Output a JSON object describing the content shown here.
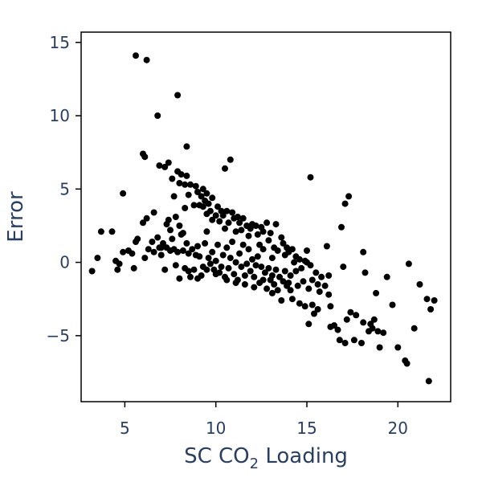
{
  "chart_data": {
    "type": "scatter",
    "title": "",
    "xlabel": "SC CO",
    "xlabel_subscript": "2",
    "xlabel_suffix": " Loading",
    "ylabel": "Error",
    "xlim": [
      2.6,
      22.9
    ],
    "ylim": [
      -9.5,
      15.7
    ],
    "x_ticks": [
      5,
      10,
      15,
      20
    ],
    "y_ticks": [
      -5,
      0,
      5,
      10,
      15
    ],
    "y_tick_labels": [
      "−5",
      "0",
      "5",
      "10",
      "15"
    ],
    "grid": false,
    "marker_color": "#000000",
    "points": [
      [
        5.6,
        14.1
      ],
      [
        6.2,
        13.8
      ],
      [
        7.9,
        11.4
      ],
      [
        6.8,
        10.0
      ],
      [
        8.4,
        7.9
      ],
      [
        6.0,
        7.4
      ],
      [
        6.1,
        7.2
      ],
      [
        10.8,
        7.0
      ],
      [
        10.5,
        6.4
      ],
      [
        7.4,
        6.8
      ],
      [
        6.9,
        6.6
      ],
      [
        7.2,
        6.5
      ],
      [
        7.9,
        6.2
      ],
      [
        8.1,
        6.0
      ],
      [
        8.4,
        5.9
      ],
      [
        7.6,
        5.7
      ],
      [
        8.0,
        5.4
      ],
      [
        8.3,
        5.3
      ],
      [
        8.6,
        5.3
      ],
      [
        8.9,
        5.2
      ],
      [
        9.3,
        5.0
      ],
      [
        9.0,
        4.8
      ],
      [
        9.5,
        4.7
      ],
      [
        8.5,
        4.6
      ],
      [
        9.2,
        4.5
      ],
      [
        7.7,
        4.5
      ],
      [
        9.8,
        4.4
      ],
      [
        9.4,
        4.2
      ],
      [
        9.6,
        4.0
      ],
      [
        9.1,
        3.9
      ],
      [
        10.1,
        3.8
      ],
      [
        9.7,
        3.5
      ],
      [
        10.3,
        3.5
      ],
      [
        10.6,
        3.5
      ],
      [
        10.9,
        3.4
      ],
      [
        9.5,
        3.3
      ],
      [
        10.0,
        3.2
      ],
      [
        10.4,
        3.2
      ],
      [
        11.2,
        3.1
      ],
      [
        11.0,
        3.0
      ],
      [
        11.5,
        3.0
      ],
      [
        9.8,
        2.9
      ],
      [
        10.2,
        2.8
      ],
      [
        10.7,
        2.7
      ],
      [
        11.3,
        2.7
      ],
      [
        12.0,
        2.6
      ],
      [
        12.8,
        2.7
      ],
      [
        13.3,
        2.6
      ],
      [
        11.7,
        2.5
      ],
      [
        12.2,
        2.5
      ],
      [
        12.5,
        2.4
      ],
      [
        11.9,
        2.3
      ],
      [
        11.4,
        2.2
      ],
      [
        11.1,
        2.1
      ],
      [
        12.6,
        2.1
      ],
      [
        13.0,
        2.0
      ],
      [
        12.3,
        1.9
      ],
      [
        11.8,
        1.8
      ],
      [
        13.6,
        1.7
      ],
      [
        12.9,
        1.5
      ],
      [
        13.7,
        1.3
      ],
      [
        12.4,
        1.2
      ],
      [
        13.2,
        1.0
      ],
      [
        13.9,
        1.0
      ],
      [
        14.2,
        0.9
      ],
      [
        13.4,
        0.8
      ],
      [
        14.0,
        0.7
      ],
      [
        13.8,
        0.5
      ],
      [
        14.4,
        0.4
      ],
      [
        13.1,
        0.3
      ],
      [
        14.6,
        0.2
      ],
      [
        14.9,
        0.1
      ],
      [
        14.3,
        0.0
      ],
      [
        15.0,
        0.0
      ],
      [
        15.2,
        -0.2
      ],
      [
        14.7,
        -0.4
      ],
      [
        15.5,
        -0.7
      ],
      [
        14.4,
        -0.6
      ],
      [
        14.1,
        -0.9
      ],
      [
        15.8,
        -1.0
      ],
      [
        15.3,
        -1.2
      ],
      [
        14.8,
        -1.3
      ],
      [
        15.6,
        -1.5
      ],
      [
        14.5,
        -1.6
      ],
      [
        16.0,
        -1.6
      ],
      [
        15.1,
        -1.8
      ],
      [
        15.7,
        -2.0
      ],
      [
        16.2,
        -2.2
      ],
      [
        14.2,
        -2.5
      ],
      [
        14.6,
        -2.8
      ],
      [
        14.9,
        -3.0
      ],
      [
        15.3,
        -2.9
      ],
      [
        15.6,
        -3.2
      ],
      [
        16.3,
        -3.0
      ],
      [
        15.4,
        -3.5
      ],
      [
        15.1,
        -4.2
      ],
      [
        16.5,
        -4.3
      ],
      [
        16.3,
        -4.4
      ],
      [
        16.7,
        -4.6
      ],
      [
        17.1,
        -5.5
      ],
      [
        16.8,
        -5.3
      ],
      [
        17.6,
        -5.3
      ],
      [
        18.0,
        -5.5
      ],
      [
        17.4,
        -3.4
      ],
      [
        17.7,
        -3.6
      ],
      [
        17.2,
        -3.9
      ],
      [
        18.1,
        -4.1
      ],
      [
        18.4,
        -4.7
      ],
      [
        18.6,
        -4.5
      ],
      [
        18.5,
        -4.2
      ],
      [
        18.7,
        -3.9
      ],
      [
        18.9,
        -4.7
      ],
      [
        19.2,
        -4.8
      ],
      [
        19.0,
        -5.8
      ],
      [
        19.7,
        -2.9
      ],
      [
        19.4,
        -1.0
      ],
      [
        18.8,
        -2.1
      ],
      [
        20.0,
        -5.8
      ],
      [
        20.4,
        -6.7
      ],
      [
        20.5,
        -6.9
      ],
      [
        20.9,
        -4.5
      ],
      [
        21.2,
        -1.5
      ],
      [
        21.6,
        -2.5
      ],
      [
        21.8,
        -3.2
      ],
      [
        22.0,
        -2.6
      ],
      [
        21.7,
        -8.1
      ],
      [
        20.6,
        -0.1
      ],
      [
        18.2,
        -0.7
      ],
      [
        18.1,
        0.7
      ],
      [
        17.3,
        4.5
      ],
      [
        17.1,
        4.0
      ],
      [
        16.9,
        2.4
      ],
      [
        16.1,
        1.1
      ],
      [
        15.2,
        5.8
      ],
      [
        15.0,
        0.8
      ],
      [
        17.0,
        -0.3
      ],
      [
        16.2,
        -0.9
      ],
      [
        3.2,
        -0.6
      ],
      [
        3.5,
        0.3
      ],
      [
        3.7,
        2.1
      ],
      [
        4.3,
        2.1
      ],
      [
        4.5,
        0.1
      ],
      [
        4.6,
        -0.5
      ],
      [
        4.7,
        -0.1
      ],
      [
        4.9,
        0.7
      ],
      [
        5.2,
        0.8
      ],
      [
        5.4,
        0.6
      ],
      [
        5.6,
        1.4
      ],
      [
        5.7,
        1.6
      ],
      [
        5.5,
        -0.4
      ],
      [
        4.9,
        4.7
      ],
      [
        6.1,
        0.3
      ],
      [
        6.3,
        0.9
      ],
      [
        6.5,
        1.4
      ],
      [
        6.6,
        0.7
      ],
      [
        6.8,
        1.7
      ],
      [
        6.9,
        1.0
      ],
      [
        7.0,
        0.5
      ],
      [
        7.1,
        1.3
      ],
      [
        7.2,
        -0.5
      ],
      [
        7.3,
        1.0
      ],
      [
        7.4,
        2.9
      ],
      [
        7.5,
        2.2
      ],
      [
        7.3,
        2.6
      ],
      [
        7.6,
        1.6
      ],
      [
        7.7,
        0.9
      ],
      [
        7.8,
        -0.2
      ],
      [
        7.9,
        0.7
      ],
      [
        8.0,
        2.5
      ],
      [
        8.1,
        1.9
      ],
      [
        8.2,
        0.8
      ],
      [
        8.3,
        -0.4
      ],
      [
        8.4,
        1.3
      ],
      [
        8.5,
        0.6
      ],
      [
        8.6,
        -1.0
      ],
      [
        8.7,
        0.9
      ],
      [
        8.8,
        -0.5
      ],
      [
        8.9,
        0.5
      ],
      [
        9.0,
        1.1
      ],
      [
        9.1,
        0.4
      ],
      [
        9.2,
        -0.9
      ],
      [
        9.3,
        -0.3
      ],
      [
        9.4,
        1.3
      ],
      [
        9.5,
        2.1
      ],
      [
        9.6,
        0.3
      ],
      [
        9.7,
        -0.1
      ],
      [
        9.8,
        0.7
      ],
      [
        9.9,
        -0.5
      ],
      [
        10.0,
        0.1
      ],
      [
        10.1,
        1.2
      ],
      [
        10.2,
        -0.7
      ],
      [
        10.3,
        -0.3
      ],
      [
        10.4,
        0.5
      ],
      [
        10.5,
        -1.0
      ],
      [
        10.6,
        1.0
      ],
      [
        10.7,
        -0.4
      ],
      [
        10.8,
        0.3
      ],
      [
        10.9,
        1.4
      ],
      [
        11.0,
        -0.8
      ],
      [
        11.1,
        0.0
      ],
      [
        11.2,
        -1.2
      ],
      [
        11.3,
        0.6
      ],
      [
        11.4,
        -0.3
      ],
      [
        11.5,
        1.2
      ],
      [
        11.6,
        -1.5
      ],
      [
        11.7,
        -0.1
      ],
      [
        11.8,
        0.9
      ],
      [
        11.9,
        -0.6
      ],
      [
        12.0,
        0.2
      ],
      [
        12.1,
        -1.0
      ],
      [
        12.2,
        -0.2
      ],
      [
        12.3,
        0.4
      ],
      [
        12.4,
        -1.4
      ],
      [
        12.5,
        -0.3
      ],
      [
        12.6,
        0.9
      ],
      [
        12.7,
        -0.7
      ],
      [
        12.8,
        -1.8
      ],
      [
        12.9,
        -0.4
      ],
      [
        13.0,
        -1.2
      ],
      [
        13.1,
        -0.9
      ],
      [
        13.2,
        -1.5
      ],
      [
        13.3,
        -0.5
      ],
      [
        13.4,
        -1.9
      ],
      [
        13.5,
        -1.0
      ],
      [
        13.6,
        -2.6
      ],
      [
        13.7,
        -1.3
      ],
      [
        13.8,
        -0.6
      ],
      [
        13.9,
        -1.6
      ],
      [
        14.0,
        -1.4
      ],
      [
        14.1,
        -1.9
      ],
      [
        6.2,
        3.0
      ],
      [
        6.6,
        3.4
      ],
      [
        7.0,
        1.0
      ],
      [
        7.5,
        0.8
      ],
      [
        8.0,
        -1.1
      ],
      [
        8.5,
        -0.6
      ],
      [
        9.0,
        -1.1
      ],
      [
        9.5,
        -0.5
      ],
      [
        10.0,
        -0.8
      ],
      [
        10.6,
        -1.2
      ],
      [
        11.1,
        -1.4
      ],
      [
        11.6,
        -0.9
      ],
      [
        12.1,
        -1.7
      ],
      [
        12.6,
        -1.2
      ],
      [
        13.1,
        -2.1
      ],
      [
        6.0,
        2.7
      ],
      [
        7.8,
        3.1
      ],
      [
        8.3,
        3.7
      ],
      [
        8.8,
        3.9
      ],
      [
        9.3,
        3.8
      ],
      [
        8.2,
        2.0
      ],
      [
        10.5,
        2.3
      ]
    ]
  }
}
